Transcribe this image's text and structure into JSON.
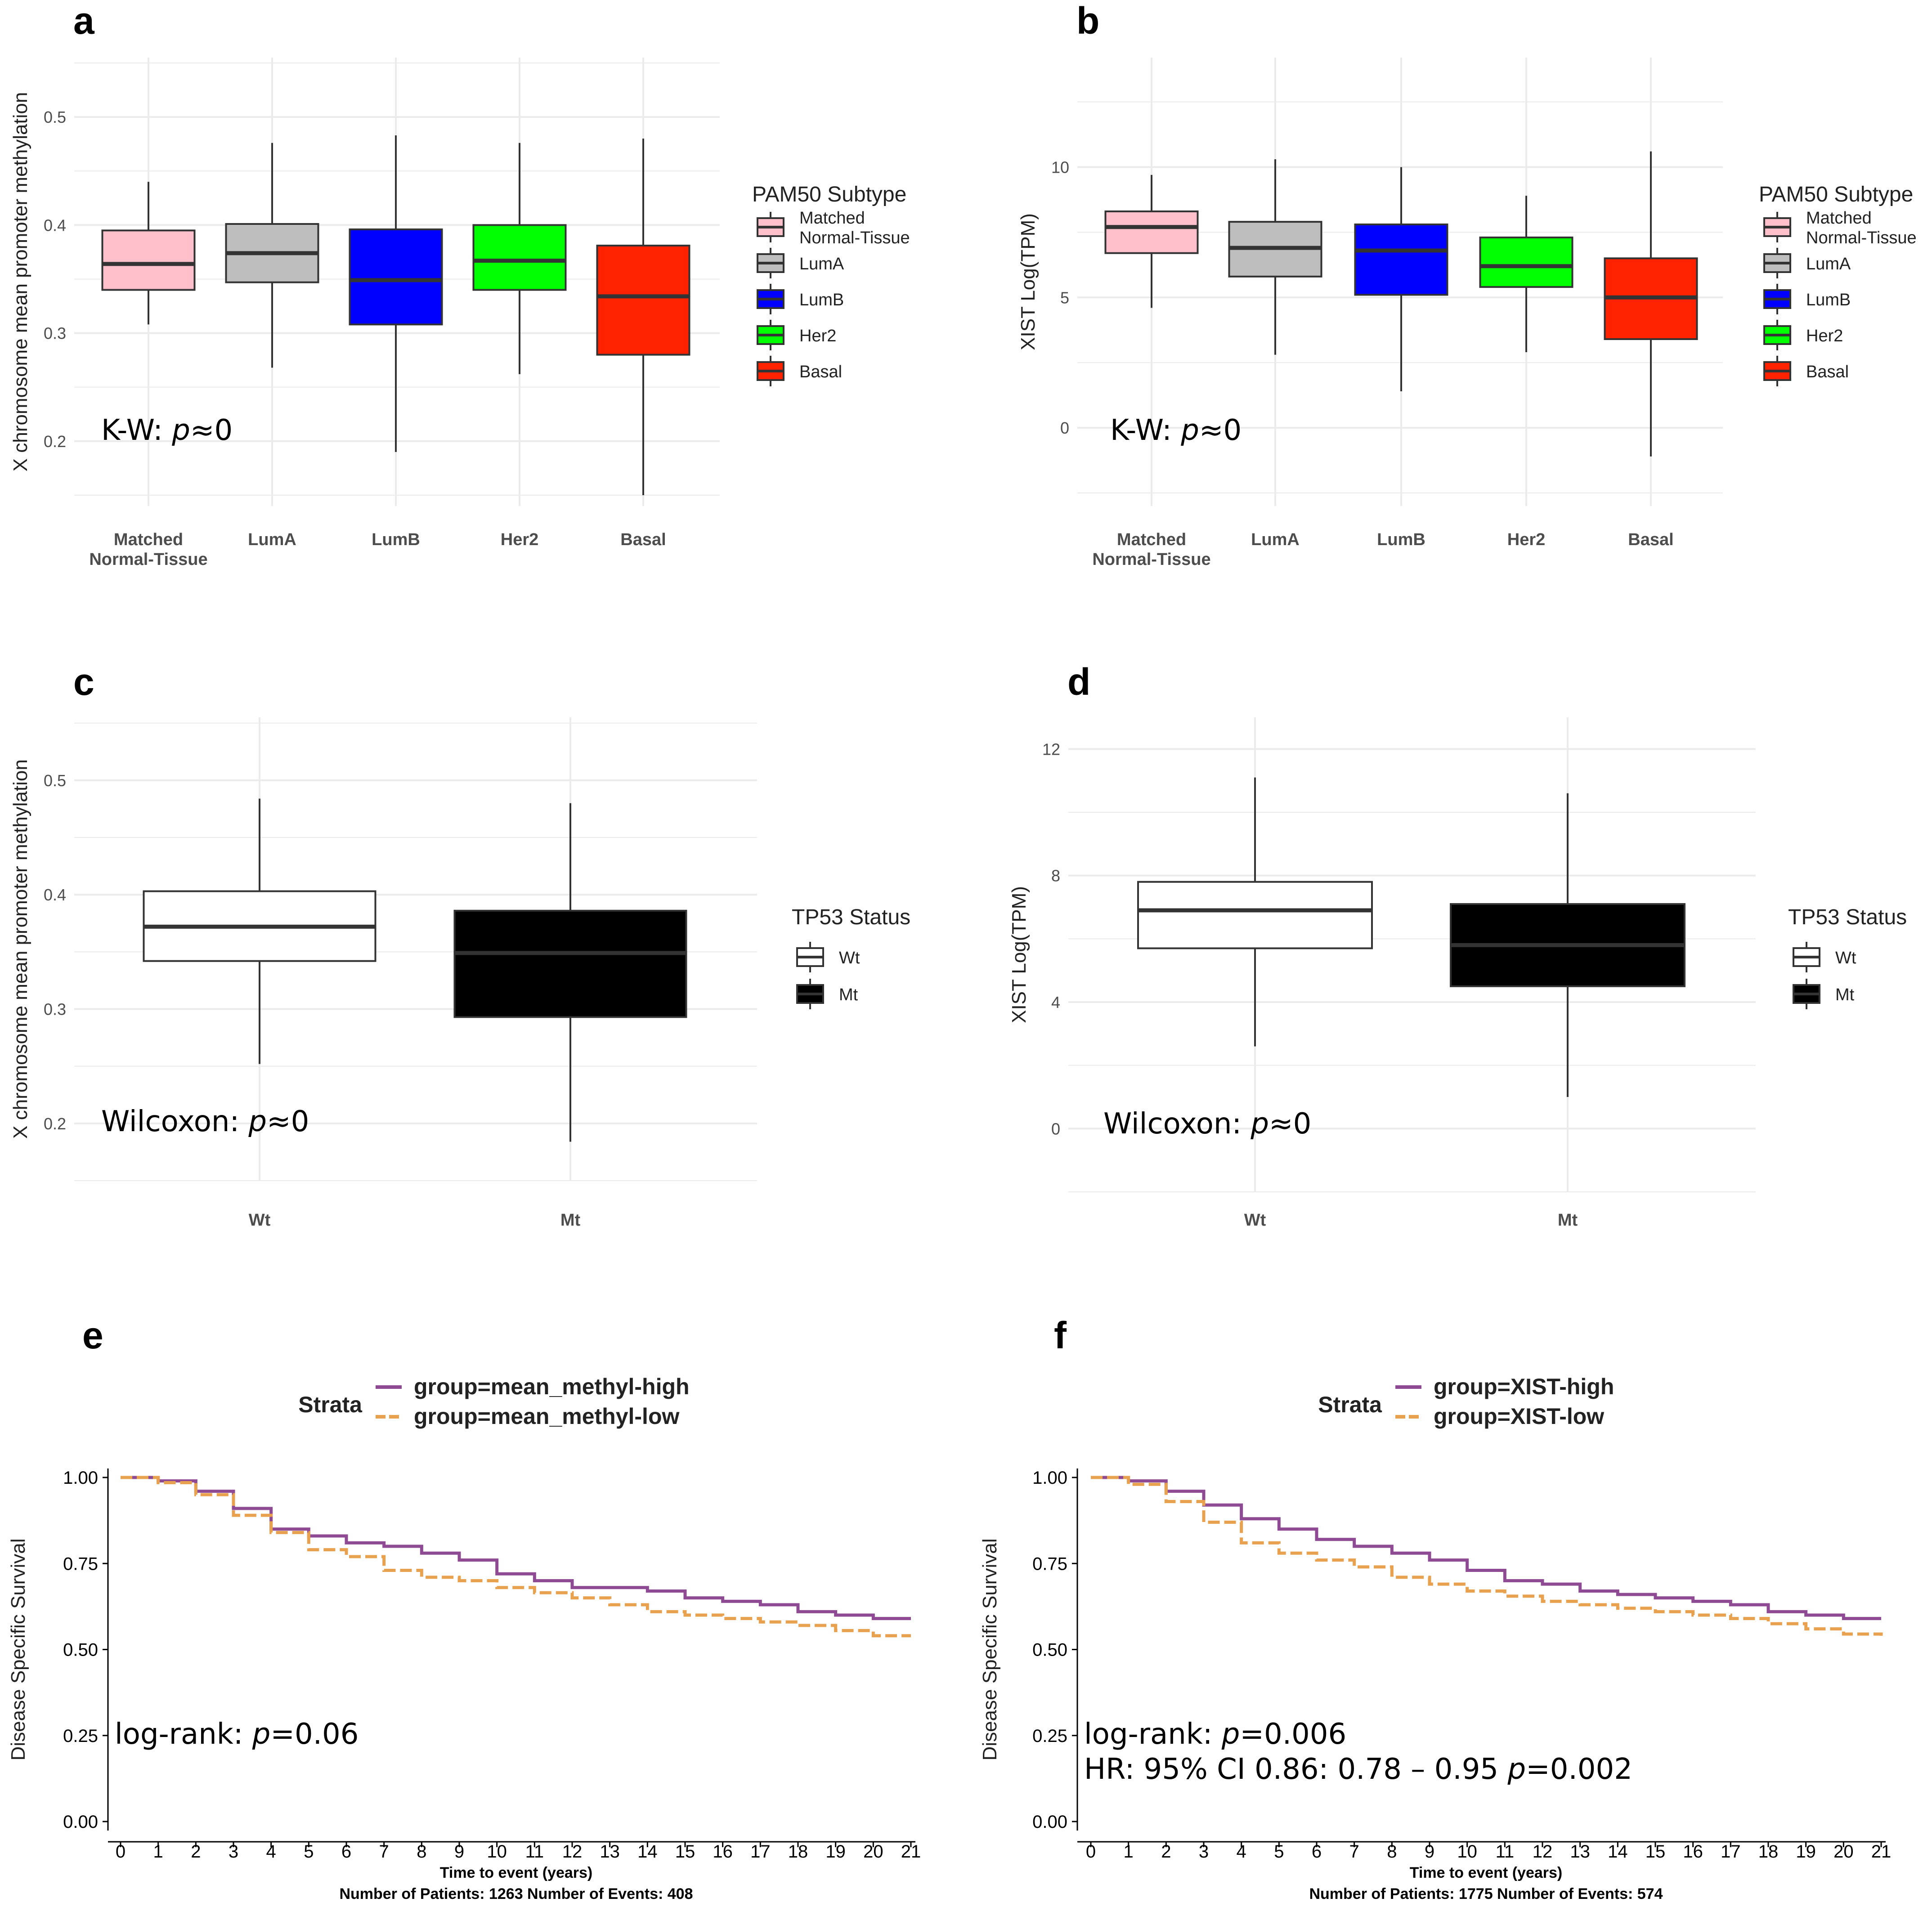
{
  "colors": {
    "grid": "#ebebeb",
    "high": "#8e4a92",
    "low": "#e8a14f"
  },
  "chart_data": [
    {
      "id": "a",
      "type": "box",
      "letter": "a",
      "ylabel": "X chromosome mean promoter methylation",
      "ylim": [
        0.14,
        0.555
      ],
      "yticks": [
        0.2,
        0.3,
        0.4,
        0.5
      ],
      "ytick_labels": [
        "0.2",
        "0.3",
        "0.4",
        "0.5"
      ],
      "categories": [
        "Matched\nNormal-Tissue",
        "LumA",
        "LumB",
        "Her2",
        "Basal"
      ],
      "boxes": [
        {
          "min": 0.308,
          "q1": 0.34,
          "median": 0.364,
          "q3": 0.395,
          "max": 0.44,
          "color": "#ffc0cb",
          "median_color": "#333333"
        },
        {
          "min": 0.268,
          "q1": 0.347,
          "median": 0.374,
          "q3": 0.401,
          "max": 0.476,
          "color": "#bebebe",
          "median_color": "#333333"
        },
        {
          "min": 0.19,
          "q1": 0.308,
          "median": 0.349,
          "q3": 0.396,
          "max": 0.483,
          "color": "#0000ff",
          "median_color": "#333333"
        },
        {
          "min": 0.262,
          "q1": 0.34,
          "median": 0.367,
          "q3": 0.4,
          "max": 0.476,
          "color": "#00ff00",
          "median_color": "#333333"
        },
        {
          "min": 0.15,
          "q1": 0.28,
          "median": 0.334,
          "q3": 0.381,
          "max": 0.48,
          "color": "#ff2200",
          "median_color": "#333333"
        }
      ],
      "legend": {
        "title": "PAM50 Subtype",
        "entries": [
          "Matched\nNormal-Tissue",
          "LumA",
          "LumB",
          "Her2",
          "Basal"
        ]
      },
      "stat": {
        "prefix": "K-W: ",
        "p": "p",
        "suffix": "≈0"
      }
    },
    {
      "id": "b",
      "type": "box",
      "letter": "b",
      "ylabel": "XIST Log(TPM)",
      "ylim": [
        -3.0,
        14.2
      ],
      "yticks": [
        0,
        5,
        10
      ],
      "ytick_labels": [
        "0",
        "5",
        "10"
      ],
      "categories": [
        "Matched\nNormal-Tissue",
        "LumA",
        "LumB",
        "Her2",
        "Basal"
      ],
      "boxes": [
        {
          "min": 4.6,
          "q1": 6.7,
          "median": 7.7,
          "q3": 8.3,
          "max": 9.7,
          "color": "#ffc0cb",
          "median_color": "#333333"
        },
        {
          "min": 2.8,
          "q1": 5.8,
          "median": 6.9,
          "q3": 7.9,
          "max": 10.3,
          "color": "#bebebe",
          "median_color": "#333333"
        },
        {
          "min": 1.4,
          "q1": 5.1,
          "median": 6.8,
          "q3": 7.8,
          "max": 10.0,
          "color": "#0000ff",
          "median_color": "#333333"
        },
        {
          "min": 2.9,
          "q1": 5.4,
          "median": 6.2,
          "q3": 7.3,
          "max": 8.9,
          "color": "#00ff00",
          "median_color": "#333333"
        },
        {
          "min": -1.1,
          "q1": 3.4,
          "median": 5.0,
          "q3": 6.5,
          "max": 10.6,
          "color": "#ff2200",
          "median_color": "#333333"
        }
      ],
      "legend": {
        "title": "PAM50 Subtype",
        "entries": [
          "Matched\nNormal-Tissue",
          "LumA",
          "LumB",
          "Her2",
          "Basal"
        ]
      },
      "stat": {
        "prefix": "K-W: ",
        "p": "p",
        "suffix": "≈0"
      }
    },
    {
      "id": "c",
      "type": "box",
      "letter": "c",
      "ylabel": "X chromosome mean promoter methylation",
      "ylim": [
        0.15,
        0.555
      ],
      "yticks": [
        0.2,
        0.3,
        0.4,
        0.5
      ],
      "ytick_labels": [
        "0.2",
        "0.3",
        "0.4",
        "0.5"
      ],
      "categories": [
        "Wt",
        "Mt"
      ],
      "boxes": [
        {
          "min": 0.252,
          "q1": 0.342,
          "median": 0.372,
          "q3": 0.403,
          "max": 0.484,
          "color": "#ffffff",
          "median_color": "#333333"
        },
        {
          "min": 0.184,
          "q1": 0.293,
          "median": 0.349,
          "q3": 0.386,
          "max": 0.48,
          "color": "#000000",
          "median_color": "#333333"
        }
      ],
      "legend": {
        "title": "TP53 Status",
        "entries": [
          "Wt",
          "Mt"
        ]
      },
      "stat": {
        "prefix": "Wilcoxon: ",
        "p": "p",
        "suffix": "≈0"
      }
    },
    {
      "id": "d",
      "type": "box",
      "letter": "d",
      "ylabel": "XIST Log(TPM)",
      "ylim": [
        -2.0,
        13.0
      ],
      "yticks": [
        0,
        4,
        8,
        12
      ],
      "ytick_labels": [
        "0",
        "4",
        "8",
        "12"
      ],
      "categories": [
        "Wt",
        "Mt"
      ],
      "boxes": [
        {
          "min": 2.6,
          "q1": 5.7,
          "median": 6.9,
          "q3": 7.8,
          "max": 11.1,
          "color": "#ffffff",
          "median_color": "#333333"
        },
        {
          "min": 1.0,
          "q1": 4.5,
          "median": 5.8,
          "q3": 7.1,
          "max": 10.6,
          "color": "#000000",
          "median_color": "#333333"
        }
      ],
      "legend": {
        "title": "TP53 Status",
        "entries": [
          "Wt",
          "Mt"
        ]
      },
      "stat": {
        "prefix": "Wilcoxon: ",
        "p": "p",
        "suffix": "≈0"
      }
    },
    {
      "id": "e",
      "type": "line",
      "letter": "e",
      "ylabel": "Disease Specific Survival",
      "xlabel": "Time to event (years)",
      "ylim": [
        0,
        1.0
      ],
      "xlim": [
        0,
        21
      ],
      "yticks": [
        0,
        0.25,
        0.5,
        0.75,
        1.0
      ],
      "ytick_labels": [
        "0.00",
        "0.25",
        "0.50",
        "0.75",
        "1.00"
      ],
      "xticks": [
        0,
        1,
        2,
        3,
        4,
        5,
        6,
        7,
        8,
        9,
        10,
        11,
        12,
        13,
        14,
        15,
        16,
        17,
        18,
        19,
        20,
        21
      ],
      "strata_title": "Strata",
      "series": [
        {
          "name": "group=mean_methyl-high",
          "x": [
            0,
            1,
            2,
            3,
            4,
            5,
            6,
            7,
            8,
            9,
            10,
            11,
            12,
            13,
            14,
            15,
            16,
            17,
            18,
            19,
            20,
            21
          ],
          "y": [
            1.0,
            0.99,
            0.96,
            0.91,
            0.85,
            0.83,
            0.81,
            0.8,
            0.78,
            0.76,
            0.72,
            0.7,
            0.68,
            0.68,
            0.67,
            0.65,
            0.64,
            0.63,
            0.61,
            0.6,
            0.59,
            0.59
          ]
        },
        {
          "name": "group=mean_methyl-low",
          "x": [
            0,
            1,
            2,
            3,
            4,
            5,
            6,
            7,
            8,
            9,
            10,
            11,
            12,
            13,
            14,
            15,
            16,
            17,
            18,
            19,
            20,
            21
          ],
          "y": [
            1.0,
            0.985,
            0.95,
            0.89,
            0.84,
            0.79,
            0.77,
            0.73,
            0.71,
            0.7,
            0.68,
            0.665,
            0.65,
            0.63,
            0.61,
            0.6,
            0.59,
            0.58,
            0.57,
            0.555,
            0.54,
            0.54
          ]
        }
      ],
      "footer": "Number of Patients:  1263  Number of Events:  408",
      "stat_lines": [
        {
          "prefix": "log-rank: ",
          "p": "p",
          "suffix": "=0.06"
        }
      ]
    },
    {
      "id": "f",
      "type": "line",
      "letter": "f",
      "ylabel": "Disease Specific Survival",
      "xlabel": "Time to event (years)",
      "ylim": [
        0,
        1.0
      ],
      "xlim": [
        0,
        21
      ],
      "yticks": [
        0,
        0.25,
        0.5,
        0.75,
        1.0
      ],
      "ytick_labels": [
        "0.00",
        "0.25",
        "0.50",
        "0.75",
        "1.00"
      ],
      "xticks": [
        0,
        1,
        2,
        3,
        4,
        5,
        6,
        7,
        8,
        9,
        10,
        11,
        12,
        13,
        14,
        15,
        16,
        17,
        18,
        19,
        20,
        21
      ],
      "strata_title": "Strata",
      "series": [
        {
          "name": "group=XIST-high",
          "x": [
            0,
            1,
            2,
            3,
            4,
            5,
            6,
            7,
            8,
            9,
            10,
            11,
            12,
            13,
            14,
            15,
            16,
            17,
            18,
            19,
            20,
            21
          ],
          "y": [
            1.0,
            0.99,
            0.96,
            0.92,
            0.88,
            0.85,
            0.82,
            0.8,
            0.78,
            0.76,
            0.73,
            0.7,
            0.69,
            0.67,
            0.66,
            0.65,
            0.64,
            0.63,
            0.61,
            0.6,
            0.59,
            0.59
          ]
        },
        {
          "name": "group=XIST-low",
          "x": [
            0,
            1,
            2,
            3,
            4,
            5,
            6,
            7,
            8,
            9,
            10,
            11,
            12,
            13,
            14,
            15,
            16,
            17,
            18,
            19,
            20,
            21
          ],
          "y": [
            1.0,
            0.98,
            0.93,
            0.87,
            0.81,
            0.78,
            0.76,
            0.74,
            0.71,
            0.69,
            0.67,
            0.655,
            0.64,
            0.63,
            0.62,
            0.61,
            0.6,
            0.59,
            0.575,
            0.56,
            0.545,
            0.54
          ]
        }
      ],
      "footer": "Number of Patients:  1775  Number of Events:  574",
      "stat_lines": [
        {
          "prefix": "log-rank: ",
          "p": "p",
          "suffix": "=0.006"
        },
        {
          "prefix": "HR: 95% CI 0.86: 0.78 – 0.95 ",
          "p": "p",
          "suffix": "=0.002"
        }
      ]
    }
  ]
}
